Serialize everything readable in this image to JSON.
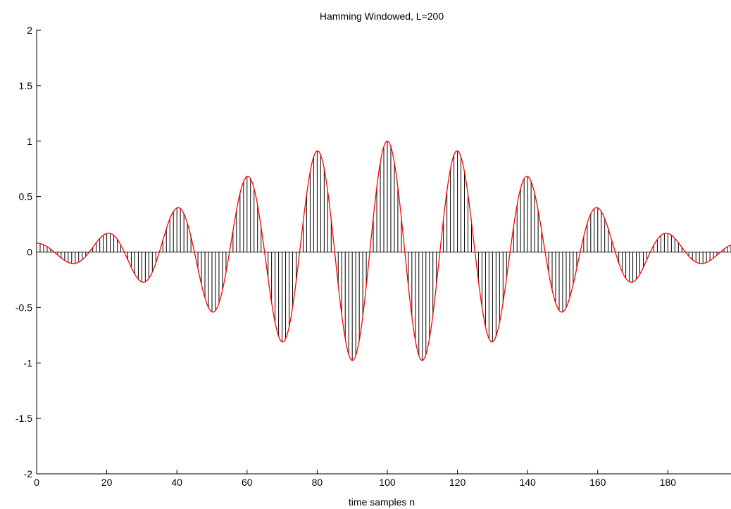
{
  "chart_data": {
    "type": "stem",
    "title": "Hamming Windowed, L=200",
    "xlabel": "time samples n",
    "ylabel": "",
    "xlim": [
      0,
      198
    ],
    "ylim": [
      -2,
      2
    ],
    "x_ticks": [
      0,
      20,
      40,
      60,
      80,
      100,
      120,
      140,
      160,
      180
    ],
    "x_tick_labels": [
      "0",
      "20",
      "40",
      "60",
      "80",
      "100",
      "120",
      "140",
      "160",
      "180"
    ],
    "y_ticks": [
      2,
      1.5,
      1,
      0.5,
      0,
      -0.5,
      -1,
      -1.5,
      -2
    ],
    "y_tick_labels": [
      "2",
      "1.5",
      "1",
      "0.5",
      "0",
      "-0.5",
      "-1",
      "-1.5",
      "-2"
    ],
    "grid": false,
    "signal": {
      "description": "Hamming-windowed cosine: w[n]*cos(2*pi*0.05*(n-100)), w[n]=0.54-0.46*cos(2*pi*n/200), n=0..198",
      "n_start": 0,
      "n_end": 198,
      "frequency": 0.05,
      "center": 100,
      "window_length": 200
    },
    "peaks": [
      {
        "n": 0,
        "value": 0.08
      },
      {
        "n": 10,
        "value": -0.1
      },
      {
        "n": 20,
        "value": 0.17
      },
      {
        "n": 30,
        "value": -0.27
      },
      {
        "n": 40,
        "value": 0.4
      },
      {
        "n": 50,
        "value": -0.54
      },
      {
        "n": 60,
        "value": 0.68
      },
      {
        "n": 70,
        "value": -0.81
      },
      {
        "n": 80,
        "value": 0.91
      },
      {
        "n": 90,
        "value": -0.98
      },
      {
        "n": 100,
        "value": 1.0
      },
      {
        "n": 110,
        "value": -0.98
      },
      {
        "n": 120,
        "value": 0.91
      },
      {
        "n": 130,
        "value": -0.81
      },
      {
        "n": 140,
        "value": 0.68
      },
      {
        "n": 150,
        "value": -0.54
      },
      {
        "n": 160,
        "value": 0.4
      },
      {
        "n": 170,
        "value": -0.27
      },
      {
        "n": 180,
        "value": 0.17
      },
      {
        "n": 190,
        "value": -0.1
      }
    ],
    "colors": {
      "stems": "#000000",
      "envelope_curve": "#ff0000",
      "axes": "#000000",
      "background": "#ffffff"
    }
  }
}
